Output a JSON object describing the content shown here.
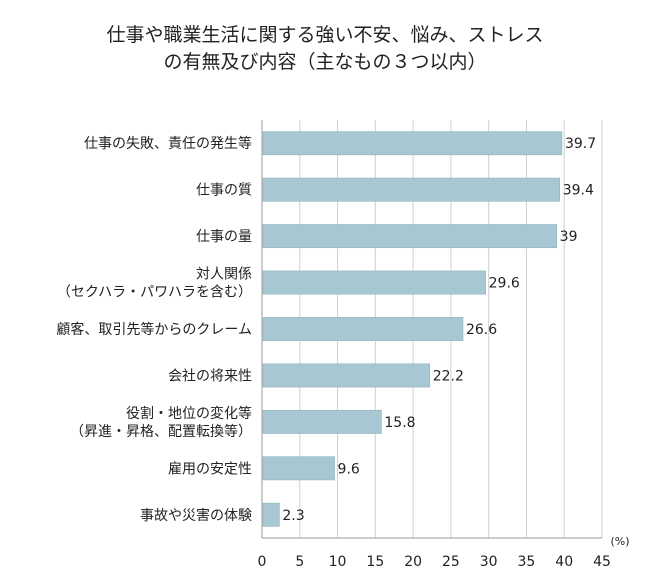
{
  "chart_data": {
    "type": "bar",
    "orientation": "horizontal",
    "title_lines": [
      "仕事や職業生活に関する強い不安、悩み、ストレス",
      "の有無及び内容（主なもの３つ以内）"
    ],
    "unit": "(%)",
    "categories": [
      [
        "仕事の失敗、責任の発生等"
      ],
      [
        "仕事の質"
      ],
      [
        "仕事の量"
      ],
      [
        "対人関係",
        "（セクハラ・パワハラを含む）"
      ],
      [
        "顧客、取引先等からのクレーム"
      ],
      [
        "会社の将来性"
      ],
      [
        "役割・地位の変化等",
        "（昇進・昇格、配置転換等）"
      ],
      [
        "雇用の安定性"
      ],
      [
        "事故や災害の体験"
      ]
    ],
    "values": [
      39.7,
      39.4,
      39,
      29.6,
      26.6,
      22.2,
      15.8,
      9.6,
      2.3
    ],
    "value_labels": [
      "39.7",
      "39.4",
      "39",
      "29.6",
      "26.6",
      "22.2",
      "15.8",
      "9.6",
      "2.3"
    ],
    "xlim": [
      0,
      45
    ],
    "xticks": [
      0,
      5,
      10,
      15,
      20,
      25,
      30,
      35,
      40,
      45
    ],
    "grid": true,
    "legend": "none",
    "colors": {
      "bar": "#a7c8d3",
      "bar_border": "#8fb3c0",
      "grid": "#cfcfcf",
      "axis": "#999999"
    }
  }
}
